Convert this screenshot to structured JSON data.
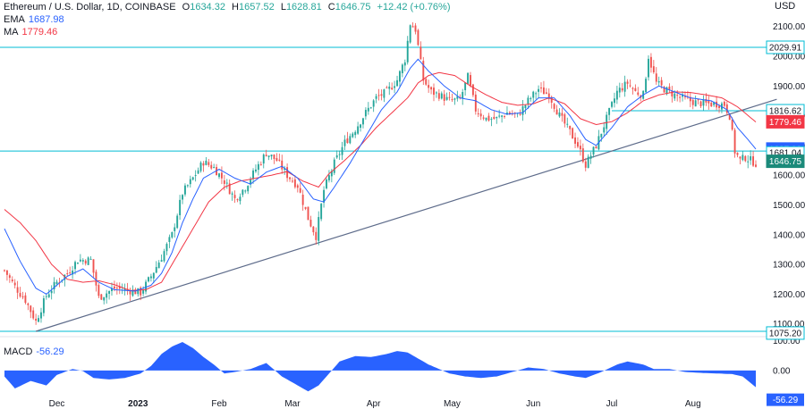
{
  "header": {
    "symbol": "Ethereum / U.S. Dollar, 1D, COINBASE",
    "o_label": "O",
    "o_value": "1634.32",
    "h_label": "H",
    "h_value": "1657.52",
    "l_label": "L",
    "l_value": "1628.81",
    "c_label": "C",
    "c_value": "1646.75",
    "change": "+12.42 (+0.76%)",
    "ema_label": "EMA",
    "ema_value": "1687.98",
    "ma_label": "MA",
    "ma_value": "1779.46",
    "currency": "USD",
    "macd_label": "MACD",
    "macd_value": "-56.29"
  },
  "colors": {
    "up": "#26a69a",
    "down": "#ef5350",
    "ema": "#2962ff",
    "ma": "#f23645",
    "level_line": "#00bcd4",
    "trendline": "#5d6b8a",
    "macd_fill": "#2962ff",
    "text": "#131722"
  },
  "chart_data": {
    "type": "candlestick",
    "price_axis": {
      "ticks": [
        "2100.00",
        "2000.00",
        "1900.00",
        "1800.00",
        "1700.00",
        "1600.00",
        "1500.00",
        "1400.00",
        "1300.00",
        "1200.00",
        "1100.00"
      ],
      "tick_values": [
        2100,
        2000,
        1900,
        1800,
        1700,
        1600,
        1500,
        1400,
        1300,
        1200,
        1100
      ],
      "ylim": [
        1060,
        2165
      ]
    },
    "time_axis": {
      "labels": [
        "Dec",
        "2023",
        "Feb",
        "Mar",
        "Apr",
        "May",
        "Jun",
        "Jul",
        "Aug"
      ],
      "label_index": [
        20,
        51,
        82,
        110,
        141,
        171,
        202,
        232,
        263
      ]
    },
    "horizontal_levels": [
      {
        "value": 2029.91,
        "label": "2029.91"
      },
      {
        "value": 1681.04,
        "label": "1681.04"
      },
      {
        "value": 1075.2,
        "label": "1075.20"
      }
    ],
    "partial_levels": [
      {
        "value": 1816.62,
        "label": "1816.62",
        "from_index": 232
      }
    ],
    "trendline": {
      "from": [
        12,
        1075
      ],
      "to": [
        295,
        1855
      ]
    },
    "price_badges": [
      {
        "label": "1816.62",
        "value": 1816.62,
        "style": "level"
      },
      {
        "label": "1779.46",
        "value": 1779.46,
        "style": "ma"
      },
      {
        "label": "1687.98",
        "value": 1687.98,
        "style": "ema"
      },
      {
        "label": "1681.04",
        "value": 1681.04,
        "style": "level"
      },
      {
        "label": "1646.75",
        "value": 1646.75,
        "style": "last"
      },
      {
        "label": "2029.91",
        "value": 2029.91,
        "style": "level"
      },
      {
        "label": "1075.20",
        "value": 1075.2,
        "style": "level"
      }
    ],
    "close_anchors": [
      [
        0,
        1280
      ],
      [
        4,
        1225
      ],
      [
        8,
        1180
      ],
      [
        12,
        1108
      ],
      [
        16,
        1195
      ],
      [
        20,
        1240
      ],
      [
        24,
        1270
      ],
      [
        28,
        1315
      ],
      [
        33,
        1315
      ],
      [
        36,
        1188
      ],
      [
        42,
        1220
      ],
      [
        48,
        1212
      ],
      [
        52,
        1205
      ],
      [
        56,
        1260
      ],
      [
        60,
        1325
      ],
      [
        64,
        1400
      ],
      [
        68,
        1540
      ],
      [
        72,
        1590
      ],
      [
        76,
        1645
      ],
      [
        80,
        1625
      ],
      [
        84,
        1580
      ],
      [
        88,
        1520
      ],
      [
        92,
        1560
      ],
      [
        96,
        1620
      ],
      [
        100,
        1675
      ],
      [
        104,
        1650
      ],
      [
        108,
        1600
      ],
      [
        112,
        1565
      ],
      [
        116,
        1455
      ],
      [
        119,
        1395
      ],
      [
        122,
        1550
      ],
      [
        126,
        1640
      ],
      [
        130,
        1710
      ],
      [
        134,
        1755
      ],
      [
        138,
        1810
      ],
      [
        142,
        1860
      ],
      [
        146,
        1880
      ],
      [
        150,
        1920
      ],
      [
        153,
        1990
      ],
      [
        155,
        2110
      ],
      [
        157,
        2090
      ],
      [
        160,
        1920
      ],
      [
        163,
        1880
      ],
      [
        166,
        1870
      ],
      [
        170,
        1850
      ],
      [
        174,
        1855
      ],
      [
        177,
        1930
      ],
      [
        180,
        1820
      ],
      [
        184,
        1790
      ],
      [
        188,
        1790
      ],
      [
        192,
        1810
      ],
      [
        196,
        1800
      ],
      [
        200,
        1850
      ],
      [
        204,
        1890
      ],
      [
        208,
        1870
      ],
      [
        212,
        1800
      ],
      [
        216,
        1745
      ],
      [
        219,
        1700
      ],
      [
        222,
        1635
      ],
      [
        226,
        1700
      ],
      [
        230,
        1790
      ],
      [
        234,
        1880
      ],
      [
        238,
        1910
      ],
      [
        241,
        1880
      ],
      [
        244,
        1870
      ],
      [
        246,
        2000
      ],
      [
        249,
        1910
      ],
      [
        252,
        1890
      ],
      [
        256,
        1870
      ],
      [
        260,
        1855
      ],
      [
        264,
        1845
      ],
      [
        268,
        1840
      ],
      [
        272,
        1840
      ],
      [
        275,
        1838
      ],
      [
        277,
        1800
      ],
      [
        279,
        1680
      ],
      [
        281,
        1650
      ],
      [
        283,
        1660
      ],
      [
        287,
        1640
      ]
    ],
    "ema_anchors": [
      [
        0,
        1420
      ],
      [
        6,
        1310
      ],
      [
        12,
        1220
      ],
      [
        16,
        1200
      ],
      [
        20,
        1230
      ],
      [
        24,
        1260
      ],
      [
        30,
        1285
      ],
      [
        36,
        1240
      ],
      [
        42,
        1215
      ],
      [
        50,
        1210
      ],
      [
        56,
        1230
      ],
      [
        60,
        1270
      ],
      [
        64,
        1340
      ],
      [
        68,
        1440
      ],
      [
        72,
        1520
      ],
      [
        76,
        1590
      ],
      [
        82,
        1620
      ],
      [
        88,
        1590
      ],
      [
        94,
        1570
      ],
      [
        100,
        1610
      ],
      [
        106,
        1630
      ],
      [
        112,
        1590
      ],
      [
        118,
        1520
      ],
      [
        122,
        1510
      ],
      [
        126,
        1560
      ],
      [
        132,
        1640
      ],
      [
        138,
        1730
      ],
      [
        144,
        1820
      ],
      [
        150,
        1880
      ],
      [
        155,
        1960
      ],
      [
        158,
        1990
      ],
      [
        162,
        1950
      ],
      [
        168,
        1900
      ],
      [
        174,
        1860
      ],
      [
        180,
        1850
      ],
      [
        186,
        1820
      ],
      [
        192,
        1805
      ],
      [
        198,
        1810
      ],
      [
        204,
        1860
      ],
      [
        210,
        1860
      ],
      [
        216,
        1800
      ],
      [
        222,
        1720
      ],
      [
        226,
        1700
      ],
      [
        232,
        1760
      ],
      [
        238,
        1830
      ],
      [
        244,
        1870
      ],
      [
        250,
        1900
      ],
      [
        256,
        1880
      ],
      [
        262,
        1860
      ],
      [
        270,
        1850
      ],
      [
        276,
        1820
      ],
      [
        280,
        1760
      ],
      [
        284,
        1720
      ],
      [
        287,
        1688
      ]
    ],
    "ma_anchors": [
      [
        0,
        1485
      ],
      [
        6,
        1440
      ],
      [
        12,
        1380
      ],
      [
        18,
        1300
      ],
      [
        24,
        1250
      ],
      [
        30,
        1240
      ],
      [
        36,
        1245
      ],
      [
        42,
        1232
      ],
      [
        48,
        1212
      ],
      [
        54,
        1215
      ],
      [
        60,
        1240
      ],
      [
        66,
        1330
      ],
      [
        72,
        1420
      ],
      [
        78,
        1510
      ],
      [
        84,
        1560
      ],
      [
        90,
        1580
      ],
      [
        96,
        1590
      ],
      [
        102,
        1600
      ],
      [
        108,
        1612
      ],
      [
        114,
        1580
      ],
      [
        120,
        1560
      ],
      [
        124,
        1605
      ],
      [
        130,
        1650
      ],
      [
        136,
        1700
      ],
      [
        142,
        1760
      ],
      [
        148,
        1810
      ],
      [
        154,
        1860
      ],
      [
        158,
        1910
      ],
      [
        162,
        1935
      ],
      [
        166,
        1945
      ],
      [
        172,
        1935
      ],
      [
        178,
        1900
      ],
      [
        184,
        1870
      ],
      [
        190,
        1845
      ],
      [
        196,
        1835
      ],
      [
        202,
        1840
      ],
      [
        208,
        1860
      ],
      [
        214,
        1840
      ],
      [
        220,
        1790
      ],
      [
        226,
        1770
      ],
      [
        232,
        1780
      ],
      [
        238,
        1810
      ],
      [
        244,
        1850
      ],
      [
        250,
        1870
      ],
      [
        256,
        1880
      ],
      [
        262,
        1878
      ],
      [
        268,
        1870
      ],
      [
        274,
        1860
      ],
      [
        280,
        1830
      ],
      [
        287,
        1779
      ]
    ],
    "macd": {
      "ticks": [
        "100.00",
        "0.00"
      ],
      "tick_values": [
        100,
        0
      ],
      "ylim": [
        -75,
        110
      ],
      "last_label": "-56.29",
      "anchors": [
        [
          0,
          -20
        ],
        [
          4,
          -60
        ],
        [
          10,
          -35
        ],
        [
          16,
          -50
        ],
        [
          20,
          -15
        ],
        [
          26,
          5
        ],
        [
          30,
          -2
        ],
        [
          34,
          -25
        ],
        [
          40,
          -30
        ],
        [
          46,
          -25
        ],
        [
          52,
          -10
        ],
        [
          56,
          15
        ],
        [
          60,
          55
        ],
        [
          64,
          80
        ],
        [
          68,
          95
        ],
        [
          72,
          75
        ],
        [
          76,
          45
        ],
        [
          80,
          20
        ],
        [
          84,
          -10
        ],
        [
          88,
          -5
        ],
        [
          94,
          5
        ],
        [
          100,
          25
        ],
        [
          106,
          -20
        ],
        [
          112,
          -50
        ],
        [
          116,
          -70
        ],
        [
          120,
          -50
        ],
        [
          124,
          -10
        ],
        [
          128,
          30
        ],
        [
          134,
          48
        ],
        [
          140,
          45
        ],
        [
          146,
          55
        ],
        [
          150,
          65
        ],
        [
          154,
          60
        ],
        [
          158,
          40
        ],
        [
          162,
          20
        ],
        [
          166,
          5
        ],
        [
          170,
          -10
        ],
        [
          176,
          -20
        ],
        [
          182,
          -25
        ],
        [
          188,
          -20
        ],
        [
          194,
          -5
        ],
        [
          200,
          10
        ],
        [
          206,
          5
        ],
        [
          212,
          -10
        ],
        [
          218,
          -20
        ],
        [
          222,
          -25
        ],
        [
          228,
          -5
        ],
        [
          234,
          20
        ],
        [
          238,
          30
        ],
        [
          244,
          20
        ],
        [
          248,
          5
        ],
        [
          254,
          5
        ],
        [
          260,
          -5
        ],
        [
          266,
          -8
        ],
        [
          272,
          -10
        ],
        [
          278,
          -12
        ],
        [
          282,
          -20
        ],
        [
          287,
          -56
        ]
      ]
    }
  }
}
